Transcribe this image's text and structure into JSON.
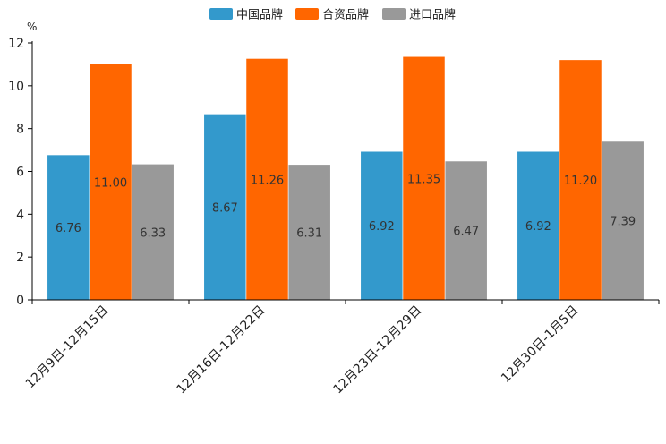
{
  "chart_data": {
    "type": "bar",
    "title": "",
    "xlabel": "",
    "ylabel": "%",
    "ylim": [
      0,
      12
    ],
    "yticks": [
      0,
      2,
      4,
      6,
      8,
      10,
      12
    ],
    "categories": [
      "12月9日-12月15日",
      "12月16日-12月22日",
      "12月23日-12月29日",
      "12月30日-1月5日"
    ],
    "series": [
      {
        "name": "中国品牌",
        "color": "#3399cc",
        "values": [
          6.76,
          8.67,
          6.92,
          6.92
        ],
        "labels": [
          "6.76",
          "8.67",
          "6.92",
          "6.92"
        ]
      },
      {
        "name": "合资品牌",
        "color": "#ff6600",
        "values": [
          11.0,
          11.26,
          11.35,
          11.2
        ],
        "labels": [
          "11.00",
          "11.26",
          "11.35",
          "11.20"
        ]
      },
      {
        "name": "进口品牌",
        "color": "#999999",
        "values": [
          6.33,
          6.31,
          6.47,
          7.39
        ],
        "labels": [
          "6.33",
          "6.31",
          "6.47",
          "7.39"
        ]
      }
    ],
    "legend_position": "top-center",
    "grid": false
  }
}
